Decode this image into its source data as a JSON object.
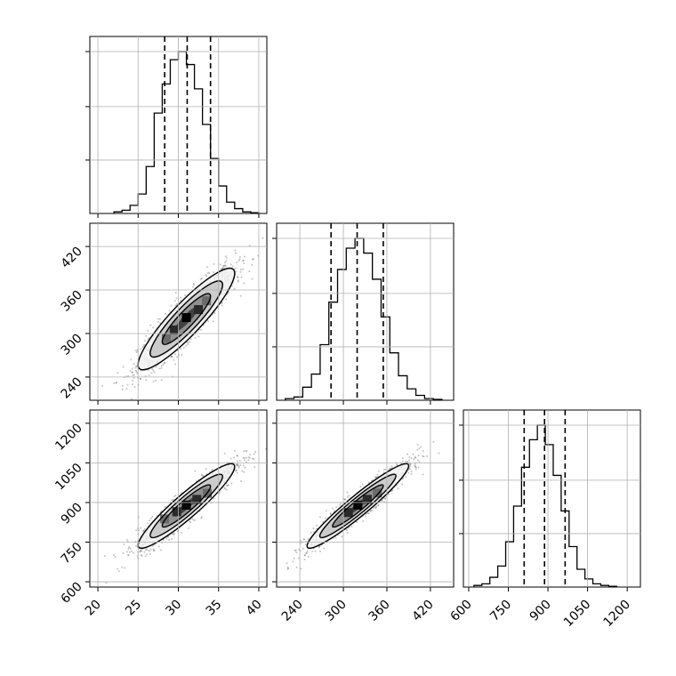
{
  "chart_data": {
    "type": "corner",
    "grid": true,
    "axis_labels": [
      "",
      "",
      ""
    ],
    "parameters": [
      {
        "range": [
          19,
          41
        ],
        "ticks": [
          20,
          25,
          30,
          35,
          40
        ],
        "quantiles": [
          28.3,
          31.1,
          34.0
        ]
      },
      {
        "range": [
          208,
          452
        ],
        "ticks": [
          240,
          300,
          360,
          420
        ],
        "quantiles": [
          283,
          319,
          355
        ]
      },
      {
        "range": [
          580,
          1250
        ],
        "ticks": [
          600,
          750,
          900,
          1050,
          1200
        ],
        "quantiles": [
          810,
          887,
          965
        ]
      }
    ],
    "histograms": [
      {
        "param": 0,
        "bins": [
          22,
          23,
          24,
          25,
          26,
          27,
          28,
          29,
          30,
          31,
          32,
          33,
          34,
          35,
          36,
          37,
          38,
          39,
          40
        ],
        "counts": [
          0.01,
          0.02,
          0.05,
          0.12,
          0.29,
          0.62,
          0.8,
          0.95,
          1.0,
          0.92,
          0.77,
          0.55,
          0.34,
          0.17,
          0.07,
          0.03,
          0.01,
          0.005
        ],
        "y_ticks": [
          0.33,
          0.66,
          1.0
        ]
      },
      {
        "param": 1,
        "bins": [
          220,
          232,
          244,
          256,
          268,
          280,
          292,
          304,
          316,
          328,
          340,
          352,
          364,
          376,
          388,
          400,
          412,
          424,
          436
        ],
        "counts": [
          0.01,
          0.02,
          0.08,
          0.16,
          0.34,
          0.6,
          0.8,
          0.93,
          0.99,
          0.9,
          0.74,
          0.51,
          0.29,
          0.15,
          0.07,
          0.03,
          0.01,
          0.005
        ],
        "y_ticks": [
          0.33,
          0.66,
          1.0
        ]
      },
      {
        "param": 2,
        "bins": [
          620,
          650,
          680,
          710,
          740,
          770,
          800,
          830,
          860,
          890,
          920,
          950,
          980,
          1010,
          1040,
          1070,
          1100,
          1130,
          1160
        ],
        "counts": [
          0.01,
          0.02,
          0.06,
          0.13,
          0.28,
          0.5,
          0.74,
          0.91,
          1.0,
          0.88,
          0.69,
          0.47,
          0.25,
          0.11,
          0.05,
          0.02,
          0.01,
          0.005
        ],
        "y_ticks": [
          0.33,
          0.66,
          1.0
        ]
      }
    ],
    "joint_distributions": [
      {
        "x_param": 0,
        "y_param": 1,
        "center": [
          31,
          320
        ],
        "sigma": [
          3,
          35
        ],
        "correlation": 0.9,
        "contour_levels": [
          0.5,
          1.0,
          1.5,
          2.0
        ],
        "shaded_bins": [
          [
            31,
            322
          ],
          [
            32.5,
            333
          ],
          [
            29.5,
            305
          ],
          [
            33.5,
            345
          ],
          [
            28.5,
            293
          ]
        ]
      },
      {
        "x_param": 0,
        "y_param": 2,
        "center": [
          31,
          887
        ],
        "sigma": [
          3,
          80
        ],
        "correlation": 0.93,
        "contour_levels": [
          0.5,
          1.0,
          1.5,
          2.0
        ],
        "shaded_bins": [
          [
            31,
            890
          ],
          [
            32.3,
            912
          ],
          [
            29.8,
            865
          ],
          [
            28.3,
            838
          ],
          [
            33.6,
            935
          ]
        ]
      },
      {
        "x_param": 1,
        "y_param": 2,
        "center": [
          320,
          887
        ],
        "sigma": [
          35,
          80
        ],
        "correlation": 0.95,
        "contour_levels": [
          0.5,
          1.0,
          1.5,
          2.0
        ],
        "shaded_bins": [
          [
            320,
            890
          ],
          [
            333,
            912
          ],
          [
            307,
            862
          ],
          [
            347,
            936
          ]
        ]
      }
    ]
  }
}
